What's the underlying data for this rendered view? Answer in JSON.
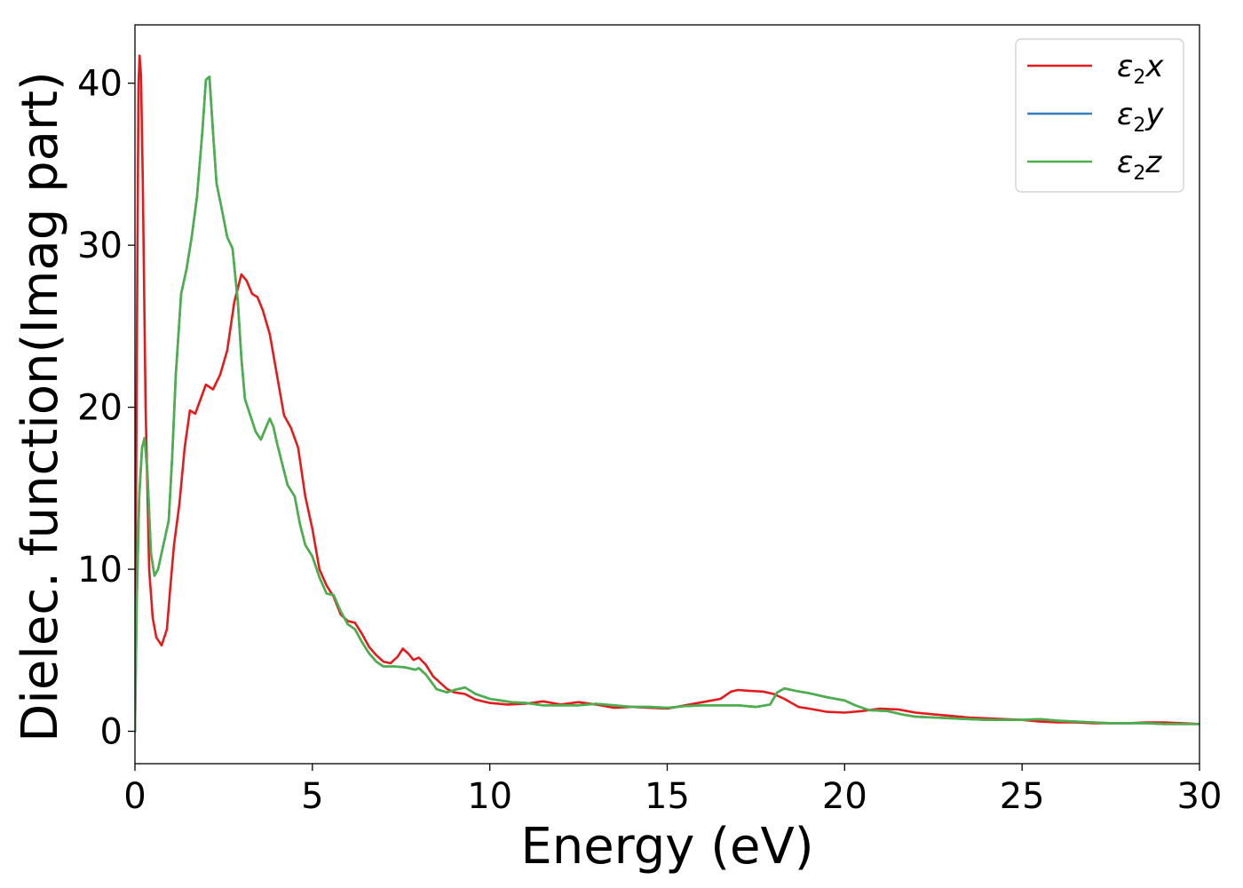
{
  "chart_data": {
    "type": "line",
    "xlabel": "Energy (eV)",
    "ylabel": "Dielec. function(Imag part)",
    "xlim": [
      0,
      30
    ],
    "ylim": [
      -2,
      43.6
    ],
    "xticks": [
      0,
      5,
      10,
      15,
      20,
      25,
      30
    ],
    "yticks": [
      0,
      10,
      20,
      30,
      40
    ],
    "grid": false,
    "legend_position": "top-right",
    "series": [
      {
        "name": "ε₂x",
        "legend": {
          "base": "ε",
          "sub": "2",
          "suffix": "x"
        },
        "color": "#e41a1c",
        "points": [
          [
            0,
            0
          ],
          [
            0.03,
            14
          ],
          [
            0.07,
            30
          ],
          [
            0.1,
            40
          ],
          [
            0.13,
            41.7
          ],
          [
            0.17,
            40.5
          ],
          [
            0.22,
            34
          ],
          [
            0.3,
            20
          ],
          [
            0.4,
            10
          ],
          [
            0.5,
            7
          ],
          [
            0.6,
            5.8
          ],
          [
            0.75,
            5.3
          ],
          [
            0.9,
            6.3
          ],
          [
            1.0,
            9
          ],
          [
            1.1,
            11.5
          ],
          [
            1.25,
            14
          ],
          [
            1.4,
            17.5
          ],
          [
            1.55,
            19.8
          ],
          [
            1.7,
            19.6
          ],
          [
            1.85,
            20.5
          ],
          [
            2.0,
            21.4
          ],
          [
            2.2,
            21.1
          ],
          [
            2.4,
            22
          ],
          [
            2.6,
            23.5
          ],
          [
            2.8,
            26.5
          ],
          [
            3.0,
            28.2
          ],
          [
            3.15,
            27.8
          ],
          [
            3.3,
            27
          ],
          [
            3.45,
            26.8
          ],
          [
            3.6,
            26
          ],
          [
            3.8,
            24.5
          ],
          [
            4.0,
            22
          ],
          [
            4.2,
            19.5
          ],
          [
            4.4,
            18.7
          ],
          [
            4.6,
            17.5
          ],
          [
            4.8,
            14.5
          ],
          [
            5.0,
            12.5
          ],
          [
            5.2,
            10
          ],
          [
            5.4,
            9
          ],
          [
            5.6,
            8.3
          ],
          [
            5.8,
            7.2
          ],
          [
            6.0,
            6.8
          ],
          [
            6.2,
            6.7
          ],
          [
            6.4,
            6
          ],
          [
            6.6,
            5.2
          ],
          [
            6.8,
            4.7
          ],
          [
            7.0,
            4.3
          ],
          [
            7.2,
            4.2
          ],
          [
            7.4,
            4.6
          ],
          [
            7.55,
            5.1
          ],
          [
            7.7,
            4.8
          ],
          [
            7.85,
            4.4
          ],
          [
            8.0,
            4.55
          ],
          [
            8.2,
            4.1
          ],
          [
            8.4,
            3.4
          ],
          [
            8.6,
            3.0
          ],
          [
            8.8,
            2.6
          ],
          [
            9.0,
            2.4
          ],
          [
            9.3,
            2.3
          ],
          [
            9.6,
            1.95
          ],
          [
            10.0,
            1.75
          ],
          [
            10.5,
            1.65
          ],
          [
            11.0,
            1.7
          ],
          [
            11.5,
            1.85
          ],
          [
            12.0,
            1.65
          ],
          [
            12.5,
            1.8
          ],
          [
            13.0,
            1.65
          ],
          [
            13.5,
            1.45
          ],
          [
            14.0,
            1.5
          ],
          [
            14.5,
            1.45
          ],
          [
            15.0,
            1.4
          ],
          [
            15.5,
            1.6
          ],
          [
            16.0,
            1.8
          ],
          [
            16.5,
            2.0
          ],
          [
            16.8,
            2.45
          ],
          [
            17.0,
            2.55
          ],
          [
            17.3,
            2.5
          ],
          [
            17.7,
            2.45
          ],
          [
            18.0,
            2.3
          ],
          [
            18.3,
            2.0
          ],
          [
            18.7,
            1.5
          ],
          [
            19.0,
            1.4
          ],
          [
            19.5,
            1.2
          ],
          [
            20.0,
            1.15
          ],
          [
            20.5,
            1.25
          ],
          [
            21.0,
            1.4
          ],
          [
            21.5,
            1.35
          ],
          [
            22.0,
            1.15
          ],
          [
            22.5,
            1.05
          ],
          [
            23.0,
            0.95
          ],
          [
            23.5,
            0.85
          ],
          [
            24.0,
            0.8
          ],
          [
            24.5,
            0.75
          ],
          [
            25.0,
            0.7
          ],
          [
            25.5,
            0.6
          ],
          [
            26.0,
            0.55
          ],
          [
            26.5,
            0.55
          ],
          [
            27.0,
            0.5
          ],
          [
            27.5,
            0.5
          ],
          [
            28.0,
            0.5
          ],
          [
            28.5,
            0.55
          ],
          [
            29.0,
            0.55
          ],
          [
            29.5,
            0.5
          ],
          [
            30.0,
            0.45
          ]
        ]
      },
      {
        "name": "ε₂y",
        "legend": {
          "base": "ε",
          "sub": "2",
          "suffix": "y"
        },
        "color": "#377eb8",
        "points": [
          [
            0,
            0
          ],
          [
            0.05,
            8
          ],
          [
            0.12,
            14.5
          ],
          [
            0.2,
            17.5
          ],
          [
            0.27,
            18.1
          ],
          [
            0.35,
            16
          ],
          [
            0.45,
            11
          ],
          [
            0.55,
            9.6
          ],
          [
            0.65,
            10
          ],
          [
            0.75,
            11
          ],
          [
            0.85,
            12
          ],
          [
            0.95,
            13
          ],
          [
            1.05,
            17
          ],
          [
            1.15,
            22
          ],
          [
            1.3,
            27
          ],
          [
            1.45,
            28.5
          ],
          [
            1.6,
            30.5
          ],
          [
            1.75,
            33
          ],
          [
            1.9,
            37
          ],
          [
            2.0,
            40.2
          ],
          [
            2.1,
            40.4
          ],
          [
            2.2,
            37
          ],
          [
            2.3,
            33.8
          ],
          [
            2.45,
            32.2
          ],
          [
            2.6,
            30.5
          ],
          [
            2.75,
            29.8
          ],
          [
            2.9,
            26.5
          ],
          [
            3.0,
            23
          ],
          [
            3.1,
            20.5
          ],
          [
            3.25,
            19.5
          ],
          [
            3.4,
            18.5
          ],
          [
            3.55,
            18
          ],
          [
            3.7,
            18.8
          ],
          [
            3.8,
            19.3
          ],
          [
            3.9,
            18.8
          ],
          [
            4.0,
            17.8
          ],
          [
            4.15,
            16.5
          ],
          [
            4.3,
            15.2
          ],
          [
            4.5,
            14.5
          ],
          [
            4.65,
            12.8
          ],
          [
            4.8,
            11.5
          ],
          [
            5.0,
            10.8
          ],
          [
            5.2,
            9.5
          ],
          [
            5.4,
            8.5
          ],
          [
            5.6,
            8.4
          ],
          [
            5.8,
            7.4
          ],
          [
            6.0,
            6.6
          ],
          [
            6.2,
            6.3
          ],
          [
            6.4,
            5.5
          ],
          [
            6.6,
            4.8
          ],
          [
            6.8,
            4.3
          ],
          [
            7.0,
            4.0
          ],
          [
            7.3,
            4.0
          ],
          [
            7.6,
            3.95
          ],
          [
            7.9,
            3.8
          ],
          [
            8.0,
            3.9
          ],
          [
            8.2,
            3.5
          ],
          [
            8.5,
            2.6
          ],
          [
            8.8,
            2.4
          ],
          [
            9.0,
            2.55
          ],
          [
            9.3,
            2.7
          ],
          [
            9.6,
            2.3
          ],
          [
            10.0,
            2.0
          ],
          [
            10.3,
            1.9
          ],
          [
            10.6,
            1.8
          ],
          [
            11.0,
            1.75
          ],
          [
            11.5,
            1.6
          ],
          [
            12.0,
            1.6
          ],
          [
            12.5,
            1.6
          ],
          [
            13.0,
            1.7
          ],
          [
            13.5,
            1.6
          ],
          [
            14.0,
            1.5
          ],
          [
            14.5,
            1.5
          ],
          [
            15.0,
            1.45
          ],
          [
            15.5,
            1.55
          ],
          [
            16.0,
            1.6
          ],
          [
            16.5,
            1.6
          ],
          [
            17.0,
            1.6
          ],
          [
            17.5,
            1.5
          ],
          [
            17.9,
            1.65
          ],
          [
            18.1,
            2.4
          ],
          [
            18.3,
            2.65
          ],
          [
            18.6,
            2.5
          ],
          [
            19.0,
            2.35
          ],
          [
            19.5,
            2.1
          ],
          [
            20.0,
            1.9
          ],
          [
            20.3,
            1.6
          ],
          [
            20.7,
            1.3
          ],
          [
            21.2,
            1.25
          ],
          [
            21.6,
            1.05
          ],
          [
            22.0,
            0.9
          ],
          [
            22.5,
            0.85
          ],
          [
            23.0,
            0.8
          ],
          [
            23.5,
            0.75
          ],
          [
            24.0,
            0.7
          ],
          [
            24.5,
            0.7
          ],
          [
            25.0,
            0.7
          ],
          [
            25.5,
            0.75
          ],
          [
            26.0,
            0.65
          ],
          [
            26.5,
            0.6
          ],
          [
            27.0,
            0.55
          ],
          [
            27.5,
            0.5
          ],
          [
            28.0,
            0.5
          ],
          [
            28.5,
            0.5
          ],
          [
            29.0,
            0.45
          ],
          [
            29.5,
            0.45
          ],
          [
            30.0,
            0.45
          ]
        ]
      },
      {
        "name": "ε₂z",
        "legend": {
          "base": "ε",
          "sub": "2",
          "suffix": "z"
        },
        "color": "#4daf4a",
        "points": [
          [
            0,
            0
          ],
          [
            0.05,
            8
          ],
          [
            0.12,
            14.5
          ],
          [
            0.2,
            17.5
          ],
          [
            0.27,
            18.1
          ],
          [
            0.35,
            16
          ],
          [
            0.45,
            11
          ],
          [
            0.55,
            9.6
          ],
          [
            0.65,
            10
          ],
          [
            0.75,
            11
          ],
          [
            0.85,
            12
          ],
          [
            0.95,
            13
          ],
          [
            1.05,
            17
          ],
          [
            1.15,
            22
          ],
          [
            1.3,
            27
          ],
          [
            1.45,
            28.5
          ],
          [
            1.6,
            30.5
          ],
          [
            1.75,
            33
          ],
          [
            1.9,
            37
          ],
          [
            2.0,
            40.2
          ],
          [
            2.1,
            40.4
          ],
          [
            2.2,
            37
          ],
          [
            2.3,
            33.8
          ],
          [
            2.45,
            32.2
          ],
          [
            2.6,
            30.5
          ],
          [
            2.75,
            29.8
          ],
          [
            2.9,
            26.5
          ],
          [
            3.0,
            23
          ],
          [
            3.1,
            20.5
          ],
          [
            3.25,
            19.5
          ],
          [
            3.4,
            18.5
          ],
          [
            3.55,
            18
          ],
          [
            3.7,
            18.8
          ],
          [
            3.8,
            19.3
          ],
          [
            3.9,
            18.8
          ],
          [
            4.0,
            17.8
          ],
          [
            4.15,
            16.5
          ],
          [
            4.3,
            15.2
          ],
          [
            4.5,
            14.5
          ],
          [
            4.65,
            12.8
          ],
          [
            4.8,
            11.5
          ],
          [
            5.0,
            10.8
          ],
          [
            5.2,
            9.5
          ],
          [
            5.4,
            8.5
          ],
          [
            5.6,
            8.4
          ],
          [
            5.8,
            7.4
          ],
          [
            6.0,
            6.6
          ],
          [
            6.2,
            6.3
          ],
          [
            6.4,
            5.5
          ],
          [
            6.6,
            4.8
          ],
          [
            6.8,
            4.3
          ],
          [
            7.0,
            4.0
          ],
          [
            7.3,
            4.0
          ],
          [
            7.6,
            3.95
          ],
          [
            7.9,
            3.8
          ],
          [
            8.0,
            3.9
          ],
          [
            8.2,
            3.5
          ],
          [
            8.5,
            2.6
          ],
          [
            8.8,
            2.4
          ],
          [
            9.0,
            2.55
          ],
          [
            9.3,
            2.7
          ],
          [
            9.6,
            2.3
          ],
          [
            10.0,
            2.0
          ],
          [
            10.3,
            1.9
          ],
          [
            10.6,
            1.8
          ],
          [
            11.0,
            1.75
          ],
          [
            11.5,
            1.6
          ],
          [
            12.0,
            1.6
          ],
          [
            12.5,
            1.6
          ],
          [
            13.0,
            1.7
          ],
          [
            13.5,
            1.6
          ],
          [
            14.0,
            1.5
          ],
          [
            14.5,
            1.5
          ],
          [
            15.0,
            1.45
          ],
          [
            15.5,
            1.55
          ],
          [
            16.0,
            1.6
          ],
          [
            16.5,
            1.6
          ],
          [
            17.0,
            1.6
          ],
          [
            17.5,
            1.5
          ],
          [
            17.9,
            1.65
          ],
          [
            18.1,
            2.4
          ],
          [
            18.3,
            2.65
          ],
          [
            18.6,
            2.5
          ],
          [
            19.0,
            2.35
          ],
          [
            19.5,
            2.1
          ],
          [
            20.0,
            1.9
          ],
          [
            20.3,
            1.6
          ],
          [
            20.7,
            1.3
          ],
          [
            21.2,
            1.25
          ],
          [
            21.6,
            1.05
          ],
          [
            22.0,
            0.9
          ],
          [
            22.5,
            0.85
          ],
          [
            23.0,
            0.8
          ],
          [
            23.5,
            0.75
          ],
          [
            24.0,
            0.7
          ],
          [
            24.5,
            0.7
          ],
          [
            25.0,
            0.7
          ],
          [
            25.5,
            0.75
          ],
          [
            26.0,
            0.65
          ],
          [
            26.5,
            0.6
          ],
          [
            27.0,
            0.55
          ],
          [
            27.5,
            0.5
          ],
          [
            28.0,
            0.5
          ],
          [
            28.5,
            0.5
          ],
          [
            29.0,
            0.45
          ],
          [
            29.5,
            0.45
          ],
          [
            30.0,
            0.45
          ]
        ]
      }
    ]
  }
}
